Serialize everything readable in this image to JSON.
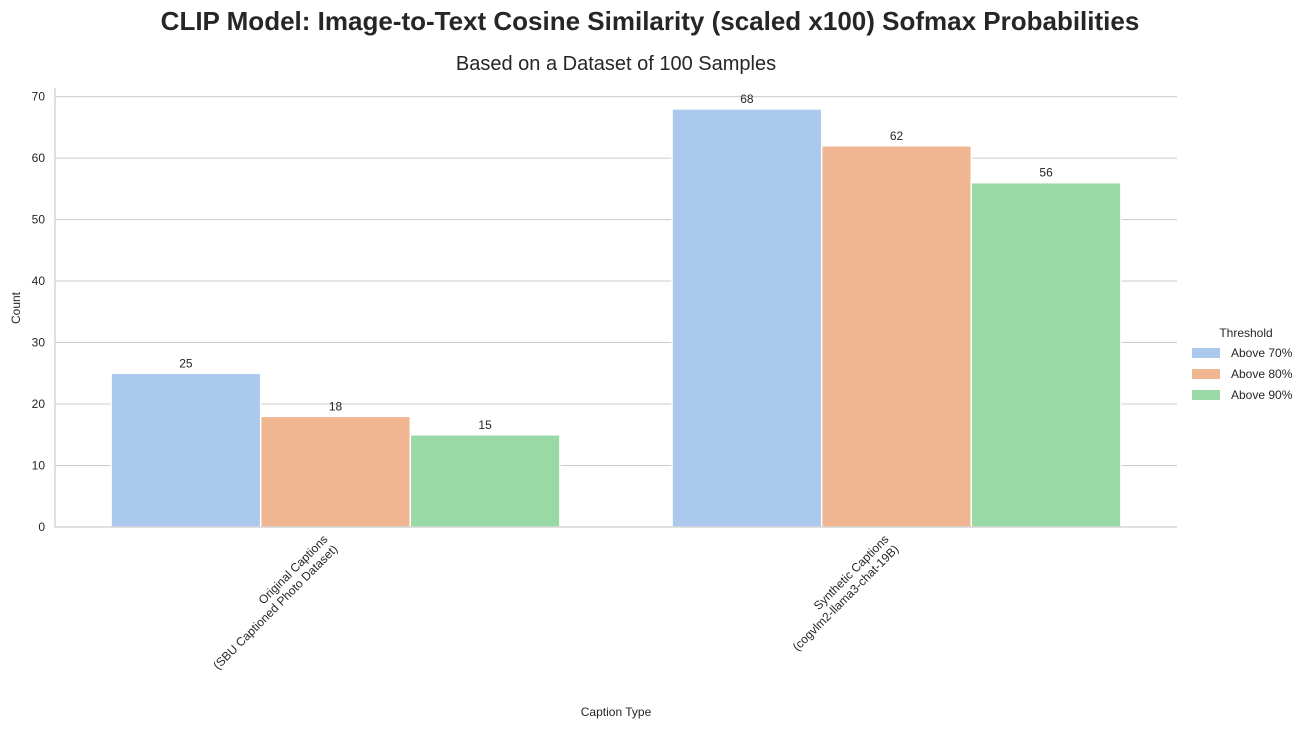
{
  "chart_data": {
    "type": "bar",
    "title": "CLIP Model: Image-to-Text Cosine Similarity (scaled x100) Sofmax Probabilities",
    "subtitle": "Based on a Dataset of 100 Samples",
    "xlabel": "Caption Type",
    "ylabel": "Count",
    "categories": [
      [
        "Original Captions",
        "(SBU Captioned Photo Dataset)"
      ],
      [
        "Synthetic Captions",
        "(cogvlm2-llama3-chat-19B)"
      ]
    ],
    "series": [
      {
        "name": "Above 70%",
        "values": [
          25,
          68
        ],
        "color": "#abc9ed"
      },
      {
        "name": "Above 80%",
        "values": [
          18,
          62
        ],
        "color": "#f0b691"
      },
      {
        "name": "Above 90%",
        "values": [
          15,
          56
        ],
        "color": "#98d9a6"
      }
    ],
    "ylim": [
      0,
      71.4
    ],
    "yticks": [
      0,
      10,
      20,
      30,
      40,
      50,
      60,
      70
    ],
    "grid": true,
    "legend": {
      "title": "Threshold",
      "placement": "right"
    }
  }
}
